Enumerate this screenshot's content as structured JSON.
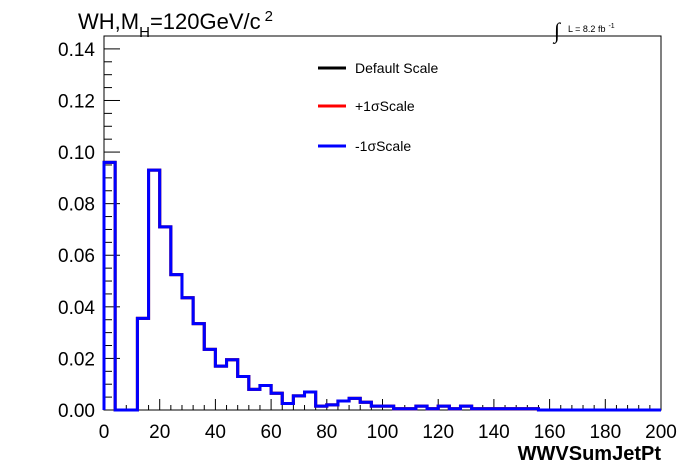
{
  "chart_data": {
    "type": "line",
    "title_main": "WH,M",
    "title_sub": "H",
    "title_rest": "=120GeV/c",
    "title_sup": "2",
    "lumi_integral": "∫",
    "lumi_text": "L = 8.2 fb",
    "lumi_sup": "-1",
    "xlabel": "WWVSumJetPt",
    "ylabel": "",
    "xlim": [
      0,
      200
    ],
    "ylim": [
      0,
      0.145
    ],
    "xticks": [
      "0",
      "20",
      "40",
      "60",
      "80",
      "100",
      "120",
      "140",
      "160",
      "180",
      "200"
    ],
    "yticks": [
      "0.00",
      "0.02",
      "0.04",
      "0.06",
      "0.08",
      "0.10",
      "0.12",
      "0.14"
    ],
    "grid": false,
    "legend_position": "top-right",
    "bin_edges": [
      0,
      4,
      8,
      12,
      16,
      20,
      24,
      28,
      32,
      36,
      40,
      44,
      48,
      52,
      56,
      60,
      64,
      68,
      72,
      76,
      80,
      84,
      88,
      92,
      96,
      100,
      104,
      108,
      112,
      116,
      120,
      124,
      128,
      132,
      136,
      140,
      144,
      148,
      152,
      156,
      160,
      164,
      168,
      172,
      176,
      180,
      184,
      188,
      192,
      196,
      200
    ],
    "series": [
      {
        "name": "Default Scale",
        "color": "#000000",
        "values": [
          0.096,
          0,
          0,
          0.0355,
          0.093,
          0.071,
          0.0525,
          0.0435,
          0.0335,
          0.0235,
          0.017,
          0.0195,
          0.013,
          0.008,
          0.0095,
          0.0065,
          0.0025,
          0.0055,
          0.007,
          0.0015,
          0.002,
          0.0035,
          0.0045,
          0.003,
          0.0015,
          0.0015,
          0.0005,
          0.0005,
          0.0015,
          0.0005,
          0.0015,
          0.0005,
          0.0015,
          0.0005,
          0.0005,
          0.0005,
          0.0005,
          0.0005,
          0.0005,
          0,
          0,
          0,
          0,
          0,
          0,
          0,
          0,
          0,
          0,
          0
        ]
      },
      {
        "name": "+1σScale",
        "color": "#ff0000",
        "values": [
          0.096,
          0,
          0,
          0.0355,
          0.093,
          0.071,
          0.0525,
          0.0435,
          0.0335,
          0.0235,
          0.017,
          0.0195,
          0.013,
          0.008,
          0.0095,
          0.0065,
          0.0025,
          0.0055,
          0.007,
          0.0015,
          0.002,
          0.0035,
          0.0045,
          0.003,
          0.0015,
          0.0015,
          0.0005,
          0.0005,
          0.0015,
          0.0005,
          0.0015,
          0.0005,
          0.0015,
          0.0005,
          0.0005,
          0.0005,
          0.0005,
          0.0005,
          0.0005,
          0,
          0,
          0,
          0,
          0,
          0,
          0,
          0,
          0,
          0,
          0
        ]
      },
      {
        "name": "-1σScale",
        "color": "#0000ff",
        "values": [
          0.096,
          0,
          0,
          0.0355,
          0.093,
          0.071,
          0.0525,
          0.0435,
          0.0335,
          0.0235,
          0.017,
          0.0195,
          0.013,
          0.008,
          0.0095,
          0.0065,
          0.0025,
          0.0055,
          0.007,
          0.0015,
          0.002,
          0.0035,
          0.0045,
          0.003,
          0.0015,
          0.0015,
          0.0005,
          0.0005,
          0.0015,
          0.0005,
          0.0015,
          0.0005,
          0.0015,
          0.0005,
          0.0005,
          0.0005,
          0.0005,
          0.0005,
          0.0005,
          0,
          0,
          0,
          0,
          0,
          0,
          0,
          0,
          0,
          0,
          0
        ]
      }
    ]
  }
}
